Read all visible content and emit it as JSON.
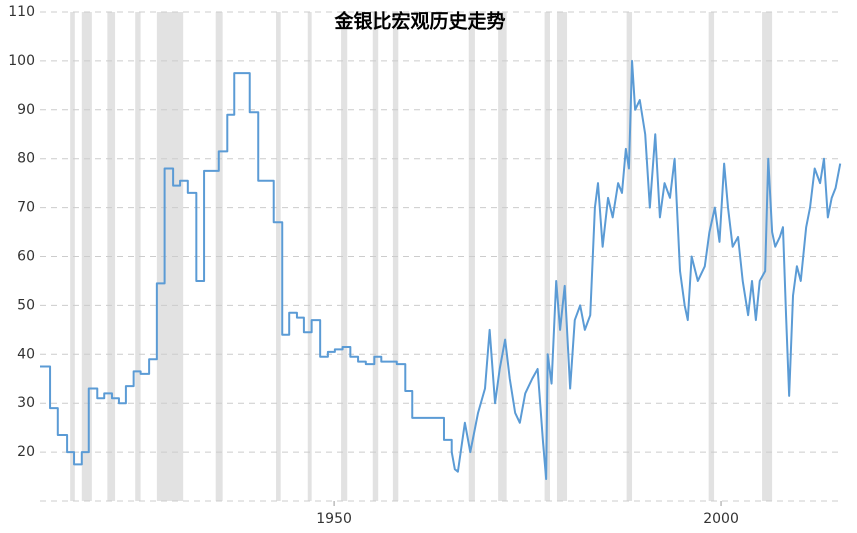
{
  "chart_data": {
    "type": "line",
    "title": "金银比宏观历史走势",
    "xlim": [
      1912,
      2015.5
    ],
    "xticks": [
      1950,
      2000
    ],
    "ylim": [
      10,
      110
    ],
    "yticks": [
      20,
      30,
      40,
      50,
      60,
      70,
      80,
      90,
      100,
      110
    ],
    "grid": true,
    "shaded_color": "#e2e2e2",
    "shaded_ranges": [
      [
        1915.9,
        1916.5
      ],
      [
        1917.4,
        1918.7
      ],
      [
        1920.7,
        1921.7
      ],
      [
        1924.3,
        1925.0
      ],
      [
        1927.1,
        1930.5
      ],
      [
        1934.7,
        1935.6
      ],
      [
        1942.5,
        1943.1
      ],
      [
        1946.6,
        1947.1
      ],
      [
        1950.9,
        1951.7
      ],
      [
        1955.0,
        1955.7
      ],
      [
        1957.6,
        1958.3
      ],
      [
        1967.4,
        1968.2
      ],
      [
        1971.2,
        1972.3
      ],
      [
        1977.2,
        1977.9
      ],
      [
        1978.8,
        1980.1
      ],
      [
        1987.8,
        1988.5
      ],
      [
        1998.4,
        1999.1
      ],
      [
        2005.3,
        2006.6
      ]
    ],
    "x": [
      1912,
      1913.3,
      1913.3,
      1914.3,
      1914.3,
      1915.5,
      1915.5,
      1916.4,
      1916.4,
      1917.4,
      1917.4,
      1918.3,
      1918.3,
      1919.4,
      1919.4,
      1920.3,
      1920.3,
      1921.3,
      1921.3,
      1922.2,
      1922.2,
      1923.1,
      1923.1,
      1924.1,
      1924.1,
      1925,
      1925,
      1926.1,
      1926.1,
      1927.1,
      1927.1,
      1928.1,
      1928.1,
      1929.2,
      1929.2,
      1930.1,
      1930.1,
      1931.1,
      1931.1,
      1932.2,
      1932.2,
      1933.2,
      1933.2,
      1935.1,
      1935.1,
      1936.2,
      1936.2,
      1937.1,
      1937.1,
      1939.1,
      1939.1,
      1940.2,
      1940.2,
      1942.2,
      1942.2,
      1943.3,
      1943.3,
      1944.2,
      1944.2,
      1945.2,
      1945.2,
      1946.1,
      1946.1,
      1947.1,
      1947.1,
      1948.2,
      1948.2,
      1949.2,
      1949.2,
      1950.1,
      1950.1,
      1951.1,
      1951.1,
      1952.1,
      1952.1,
      1953.1,
      1953.1,
      1954.1,
      1954.1,
      1955.2,
      1955.2,
      1956.1,
      1956.1,
      1958.1,
      1958.1,
      1959.2,
      1959.2,
      1960.1,
      1960.1,
      1964.2,
      1964.2,
      1965.2,
      1965.2,
      1965.6,
      1966.0,
      1966.9,
      1967.6,
      1968.6,
      1969.5,
      1970.1,
      1970.8,
      1971.4,
      1972.1,
      1972.7,
      1973.4,
      1974.0,
      1974.7,
      1975.6,
      1976.3,
      1977.0,
      1977.4,
      1977.6,
      1978.1,
      1978.7,
      1979.2,
      1979.8,
      1980.5,
      1981.1,
      1981.8,
      1982.4,
      1983.1,
      1983.7,
      1984.1,
      1984.7,
      1985.4,
      1986.0,
      1986.7,
      1987.2,
      1987.7,
      1988.1,
      1988.5,
      1988.9,
      1989.5,
      1990.2,
      1990.8,
      1991.5,
      1992.1,
      1992.7,
      1993.4,
      1994.0,
      1994.7,
      1995.3,
      1995.7,
      1996.2,
      1997.0,
      1997.9,
      1998.5,
      1999.2,
      1999.8,
      2000.4,
      2000.9,
      2001.5,
      2002.2,
      2002.8,
      2003.5,
      2004.0,
      2004.5,
      2005.0,
      2005.7,
      2006.1,
      2006.6,
      2007.0,
      2007.6,
      2008.0,
      2008.4,
      2008.8,
      2009.3,
      2009.8,
      2010.3,
      2011.0,
      2011.5,
      2012.1,
      2012.8,
      2013.3,
      2013.8,
      2014.3,
      2014.8,
      2015.4
    ],
    "series": [
      {
        "color": "#5b9bd5",
        "values": [
          37.5,
          37.5,
          29,
          29,
          23.5,
          23.5,
          20,
          20,
          17.5,
          17.5,
          20,
          20,
          33,
          33,
          31,
          31,
          32,
          32,
          31,
          31,
          30,
          30,
          33.5,
          33.5,
          36.5,
          36.5,
          36,
          36,
          39,
          39,
          54.5,
          54.5,
          78,
          78,
          74.5,
          74.5,
          75.5,
          75.5,
          73,
          73,
          55,
          55,
          77.5,
          77.5,
          81.5,
          81.5,
          89,
          89,
          97.5,
          97.5,
          89.5,
          89.5,
          75.5,
          75.5,
          67,
          67,
          44,
          44,
          48.5,
          48.5,
          47.5,
          47.5,
          44.5,
          44.5,
          47,
          47,
          39.5,
          39.5,
          40.5,
          40.5,
          41,
          41,
          41.5,
          41.5,
          39.5,
          39.5,
          38.5,
          38.5,
          38,
          38,
          39.5,
          39.5,
          38.5,
          38.5,
          38,
          38,
          32.5,
          32.5,
          27,
          27,
          22.5,
          22.5,
          20,
          16.5,
          16,
          26,
          20,
          28,
          33,
          45,
          30,
          37,
          43,
          35,
          28,
          26,
          32,
          35,
          37,
          22,
          14.5,
          40,
          34,
          55,
          45,
          54,
          33,
          47,
          50,
          45,
          48,
          70,
          75,
          62,
          72,
          68,
          75,
          73,
          82,
          78,
          100,
          90,
          92,
          85,
          70,
          85,
          68,
          75,
          72,
          80,
          57,
          50,
          47,
          60,
          55,
          58,
          65,
          70,
          63,
          79,
          70,
          62,
          64,
          55,
          48,
          55,
          47,
          55,
          57,
          80,
          65,
          62,
          64,
          66,
          48,
          31.5,
          52,
          58,
          55,
          66,
          70,
          78,
          75,
          80,
          68,
          72,
          74,
          79
        ]
      }
    ]
  }
}
